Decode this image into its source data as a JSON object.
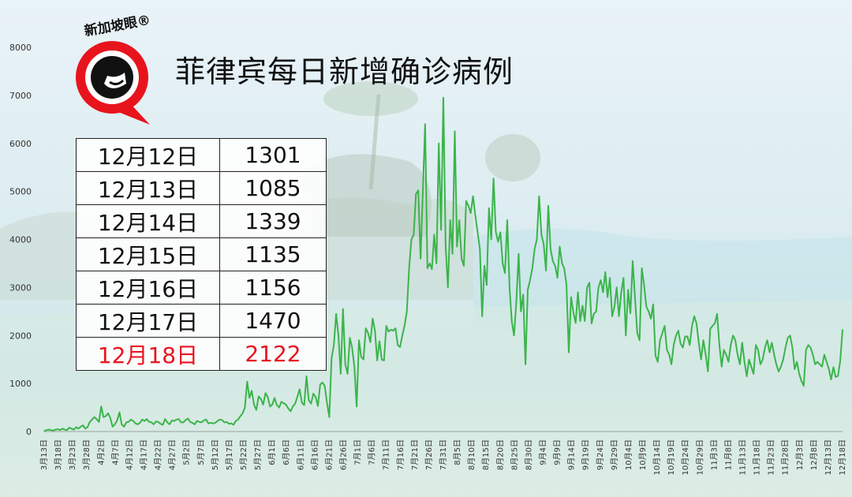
{
  "title": "菲律宾每日新增确诊病例",
  "logo": {
    "text": "新加坡眼®",
    "accent": "#e8141d"
  },
  "table": [
    {
      "date": "12月12日",
      "value": "1301"
    },
    {
      "date": "12月13日",
      "value": "1085"
    },
    {
      "date": "12月14日",
      "value": "1339"
    },
    {
      "date": "12月15日",
      "value": "1135"
    },
    {
      "date": "12月16日",
      "value": "1156"
    },
    {
      "date": "12月17日",
      "value": "1470"
    },
    {
      "date": "12月18日",
      "value": "2122",
      "highlight": true
    }
  ],
  "chart_data": {
    "type": "line",
    "title": "菲律宾每日新增确诊病例",
    "xlabel": "",
    "ylabel": "",
    "ylim": [
      0,
      8000
    ],
    "yticks": [
      0,
      1000,
      2000,
      3000,
      4000,
      5000,
      6000,
      7000,
      8000
    ],
    "grid": false,
    "line_color": "#3bb44a",
    "x_start": "3月13日",
    "x_end": "12月18日",
    "x_tick_labels": [
      "3月13日",
      "3月18日",
      "3月23日",
      "3月28日",
      "4月2日",
      "4月7日",
      "4月12日",
      "4月17日",
      "4月22日",
      "4月27日",
      "5月2日",
      "5月7日",
      "5月12日",
      "5月17日",
      "5月22日",
      "5月27日",
      "6月1日",
      "6月6日",
      "6月11日",
      "6月16日",
      "6月21日",
      "6月26日",
      "7月1日",
      "7月6日",
      "7月11日",
      "7月16日",
      "7月21日",
      "7月26日",
      "7月31日",
      "8月5日",
      "8月10日",
      "8月15日",
      "8月20日",
      "8月25日",
      "8月30日",
      "9月4日",
      "9月9日",
      "9月14日",
      "9月19日",
      "9月24日",
      "9月29日",
      "10月4日",
      "10月9日",
      "10月14日",
      "10月19日",
      "10月24日",
      "10月29日",
      "11月3日",
      "11月8日",
      "11月13日",
      "11月18日",
      "11月23日",
      "11月28日",
      "12月3日",
      "12月8日",
      "12月13日",
      "12月18日"
    ],
    "series": [
      {
        "values": [
          10,
          30,
          40,
          30,
          20,
          40,
          50,
          30,
          60,
          40,
          30,
          80,
          60,
          40,
          90,
          60,
          100,
          130,
          60,
          90,
          200,
          250,
          300,
          260,
          200,
          520,
          300,
          320,
          380,
          280,
          100,
          150,
          230,
          400,
          150,
          100,
          190,
          200,
          250,
          220,
          170,
          150,
          180,
          250,
          220,
          260,
          200,
          190,
          150,
          210,
          200,
          160,
          140,
          260,
          190,
          150,
          230,
          220,
          250,
          260,
          190,
          190,
          240,
          270,
          200,
          180,
          150,
          220,
          200,
          190,
          230,
          250,
          170,
          180,
          170,
          180,
          220,
          250,
          240,
          190,
          200,
          160,
          170,
          140,
          220,
          250,
          320,
          380,
          500,
          1040,
          700,
          850,
          560,
          450,
          730,
          680,
          560,
          800,
          720,
          520,
          560,
          700,
          550,
          500,
          620,
          590,
          560,
          480,
          420,
          520,
          580,
          720,
          880,
          600,
          550,
          1150,
          650,
          580,
          790,
          720,
          530,
          980,
          1020,
          950,
          600,
          300,
          1530,
          1800,
          2450,
          2000,
          1200,
          2550,
          1400,
          1200,
          1950,
          1750,
          1350,
          520,
          1900,
          1550,
          1500,
          2150,
          2050,
          1860,
          2350,
          2100,
          1480,
          1880,
          1500,
          1480,
          2200,
          2080,
          2120,
          2100,
          2150,
          1800,
          1760,
          2000,
          2200,
          2500,
          3400,
          4000,
          4100,
          4950,
          5020,
          3600,
          5000,
          6400,
          3400,
          3500,
          3380,
          4100,
          3500,
          6000,
          4200,
          6950,
          3850,
          3000,
          4400,
          3700,
          6250,
          3850,
          4400,
          3600,
          3450,
          4800,
          4700,
          4550,
          4900,
          4500,
          4150,
          3800,
          2400,
          3450,
          3050,
          4650,
          4000,
          5270,
          4160,
          3950,
          4150,
          3500,
          3300,
          4400,
          3000,
          2300,
          2000,
          2700,
          3700,
          2500,
          2850,
          1400,
          2950,
          3150,
          3400,
          3800,
          4000,
          4900,
          4100,
          3900,
          3350,
          4700,
          3800,
          3550,
          3450,
          3200,
          3850,
          3500,
          3400,
          3050,
          1650,
          2800,
          2480,
          2260,
          2900,
          2300,
          2620,
          2300,
          3000,
          3100,
          2250,
          2450,
          2500,
          3000,
          3150,
          2900,
          3320,
          2800,
          3200,
          2400,
          2600,
          3000,
          2400,
          2900,
          3200,
          2000,
          2950,
          2460,
          3550,
          2800,
          2050,
          1900,
          3400,
          3050,
          2600,
          2500,
          2350,
          2650,
          1580,
          1450,
          1900,
          2050,
          2200,
          1700,
          1600,
          1400,
          1800,
          2000,
          2100,
          1830,
          1750,
          1980,
          1980,
          1800,
          2200,
          2400,
          2250,
          1850,
          1500,
          1900,
          1600,
          1250,
          2140,
          2200,
          2250,
          2450,
          1800,
          1350,
          1700,
          1600,
          1450,
          1800,
          2000,
          1900,
          1600,
          1400,
          1850,
          1450,
          1150,
          1500,
          1350,
          1200,
          1800,
          1700,
          1400,
          1500,
          1750,
          1900,
          1650,
          1850,
          1600,
          1400,
          1250,
          1350,
          1500,
          1750,
          1950,
          2000,
          1750,
          1300,
          1450,
          1200,
          1050,
          950,
          1700,
          1800,
          1750,
          1600,
          1400,
          1450,
          1400,
          1350,
          1600,
          1450,
          1301,
          1085,
          1339,
          1135,
          1156,
          1470,
          2122
        ]
      }
    ]
  }
}
